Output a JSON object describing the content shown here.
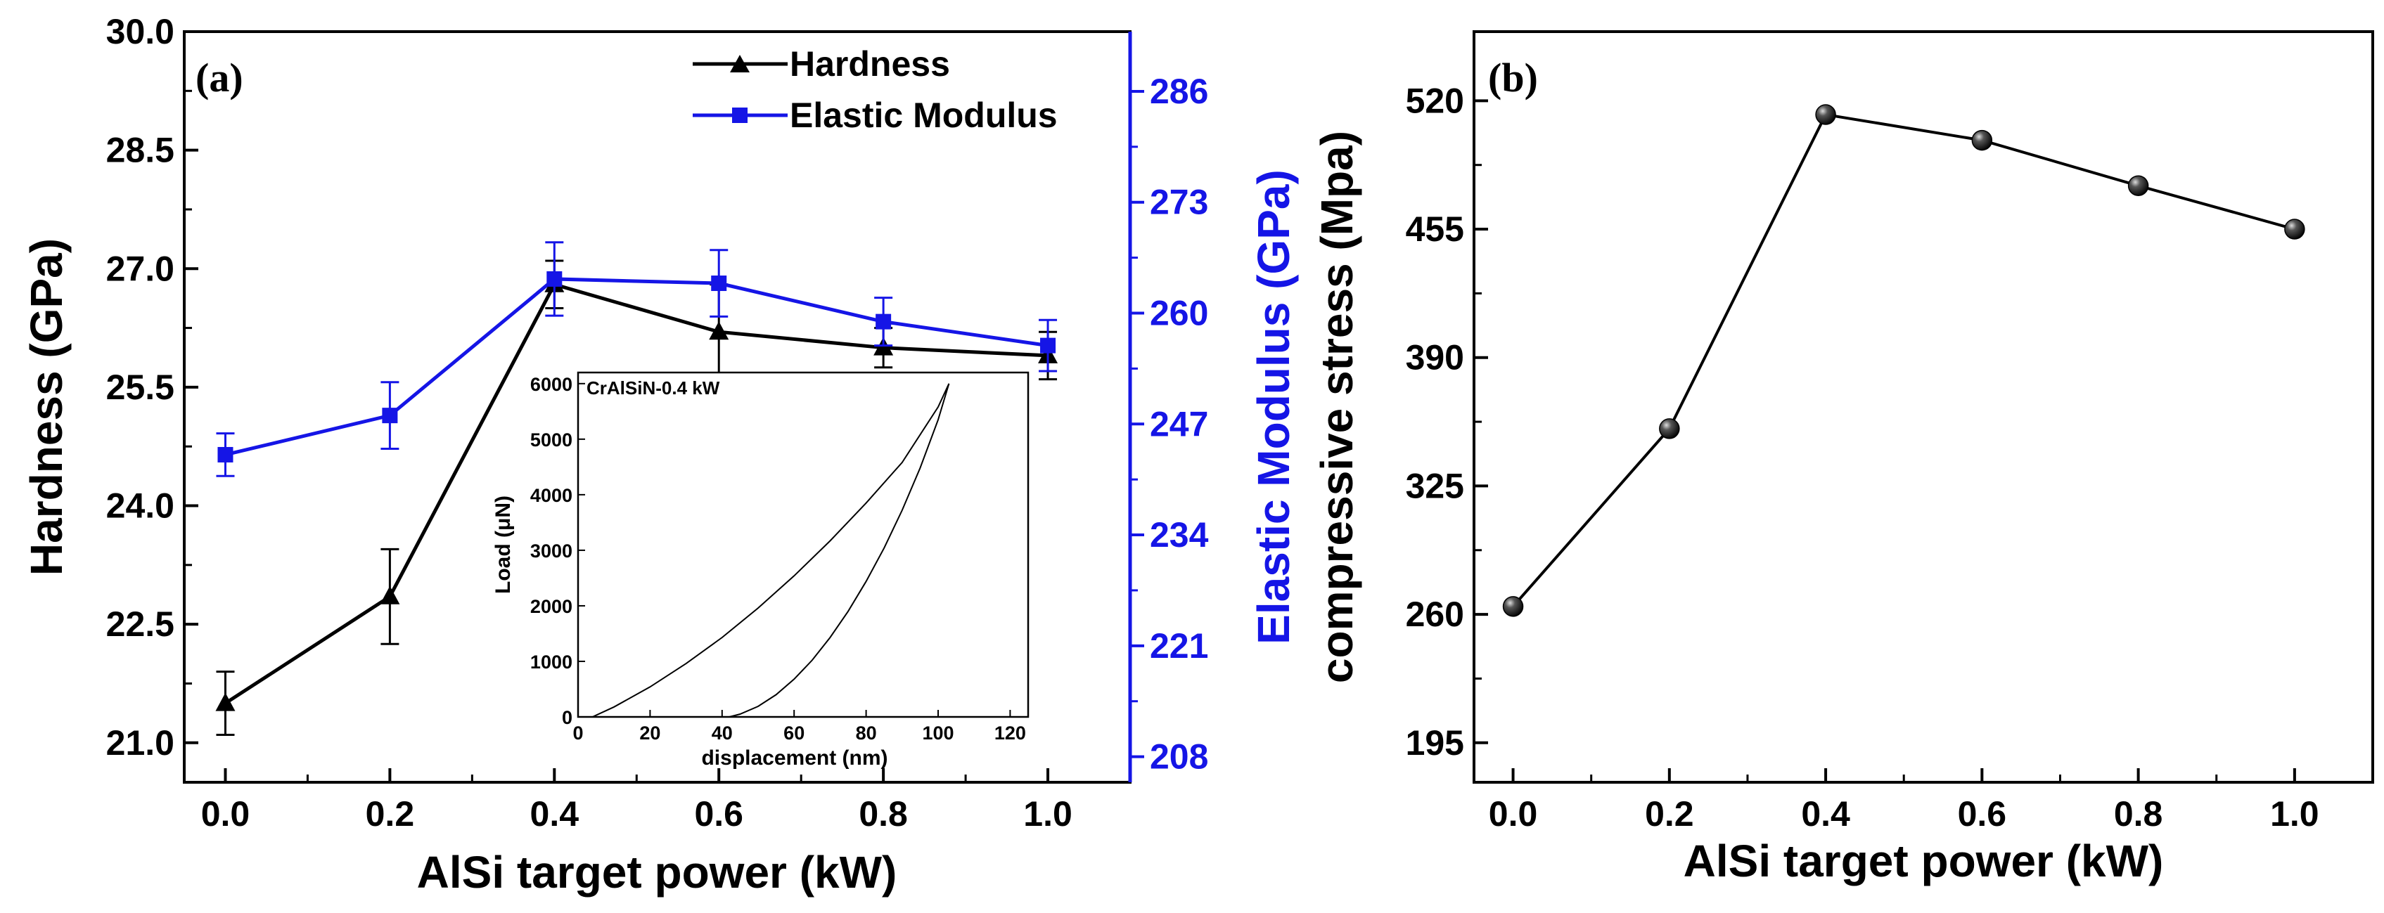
{
  "chart_data": [
    {
      "type": "line",
      "panel_label": "(a)",
      "xlabel": "AlSi target power (kW)",
      "xlim": [
        -0.05,
        1.1
      ],
      "xticks": [
        0.0,
        0.2,
        0.4,
        0.6,
        0.8,
        1.0
      ],
      "xtick_labels": [
        "0.0",
        "0.2",
        "0.4",
        "0.6",
        "0.8",
        "1.0"
      ],
      "ylabel": "Hardness (GPa)",
      "ylim": [
        20.5,
        30.0
      ],
      "yticks": [
        21.0,
        22.5,
        24.0,
        25.5,
        27.0,
        28.5,
        30.0
      ],
      "ytick_labels": [
        "21.0",
        "22.5",
        "24.0",
        "25.5",
        "27.0",
        "28.5",
        "30.0"
      ],
      "y2label": "Elastic Modulus (GPa)",
      "y2lim": [
        205,
        293
      ],
      "y2ticks": [
        208,
        221,
        234,
        247,
        260,
        273,
        286
      ],
      "y2tick_labels": [
        "208",
        "221",
        "234",
        "247",
        "260",
        "273",
        "286"
      ],
      "legend": [
        "Hardness",
        "Elastic Modulus"
      ],
      "legend_position": "top-right",
      "colors": {
        "hardness": "#000000",
        "modulus": "#1515e6"
      },
      "x": [
        0.0,
        0.2,
        0.4,
        0.6,
        0.8,
        1.0
      ],
      "series": [
        {
          "name": "Hardness",
          "axis": "left",
          "marker": "triangle",
          "values": [
            21.5,
            22.85,
            26.8,
            26.2,
            26.0,
            25.9
          ],
          "errors": [
            0.4,
            0.6,
            0.3,
            0.6,
            0.25,
            0.3
          ]
        },
        {
          "name": "Elastic Modulus",
          "axis": "right",
          "marker": "square",
          "values": [
            243.4,
            248.0,
            264.0,
            263.5,
            259.0,
            256.2
          ],
          "errors": [
            2.5,
            3.9,
            4.3,
            3.9,
            2.8,
            3.0
          ]
        }
      ],
      "inset": {
        "type": "line",
        "title": "CrAlSiN-0.4 kW",
        "xlabel": "displacement (nm)",
        "ylabel": "Load (μN)",
        "xlim": [
          0,
          125
        ],
        "ylim": [
          0,
          6200
        ],
        "xticks": [
          0,
          20,
          40,
          60,
          80,
          100,
          120
        ],
        "xtick_labels": [
          "0",
          "20",
          "40",
          "60",
          "80",
          "100",
          "120"
        ],
        "yticks": [
          0,
          1000,
          2000,
          3000,
          4000,
          5000,
          6000
        ],
        "ytick_labels": [
          "0",
          "1000",
          "2000",
          "3000",
          "4000",
          "5000",
          "6000"
        ],
        "loading": {
          "x": [
            4,
            10,
            20,
            30,
            40,
            50,
            60,
            70,
            80,
            90,
            100,
            103
          ],
          "y": [
            0,
            180,
            540,
            960,
            1430,
            1960,
            2540,
            3170,
            3850,
            4580,
            5580,
            6000
          ]
        },
        "unloading": {
          "x": [
            103,
            100,
            95,
            90,
            85,
            80,
            75,
            70,
            65,
            60,
            55,
            50,
            45,
            42
          ],
          "y": [
            6000,
            5350,
            4480,
            3720,
            3040,
            2440,
            1900,
            1430,
            1020,
            680,
            400,
            190,
            50,
            0
          ]
        }
      }
    },
    {
      "type": "line",
      "panel_label": "(b)",
      "xlabel": "AlSi target power (kW)",
      "xlim": [
        -0.05,
        1.1
      ],
      "xticks": [
        0.0,
        0.2,
        0.4,
        0.6,
        0.8,
        1.0
      ],
      "xtick_labels": [
        "0.0",
        "0.2",
        "0.4",
        "0.6",
        "0.8",
        "1.0"
      ],
      "ylabel": "compressive stress (Mpa)",
      "ylim": [
        175,
        555
      ],
      "yticks": [
        195,
        260,
        325,
        390,
        455,
        520
      ],
      "ytick_labels": [
        "195",
        "260",
        "325",
        "390",
        "455",
        "520"
      ],
      "colors": {
        "line": "#000000"
      },
      "x": [
        0.0,
        0.2,
        0.4,
        0.6,
        0.8,
        1.0
      ],
      "values": [
        264,
        354,
        513,
        500,
        477,
        455
      ]
    }
  ]
}
